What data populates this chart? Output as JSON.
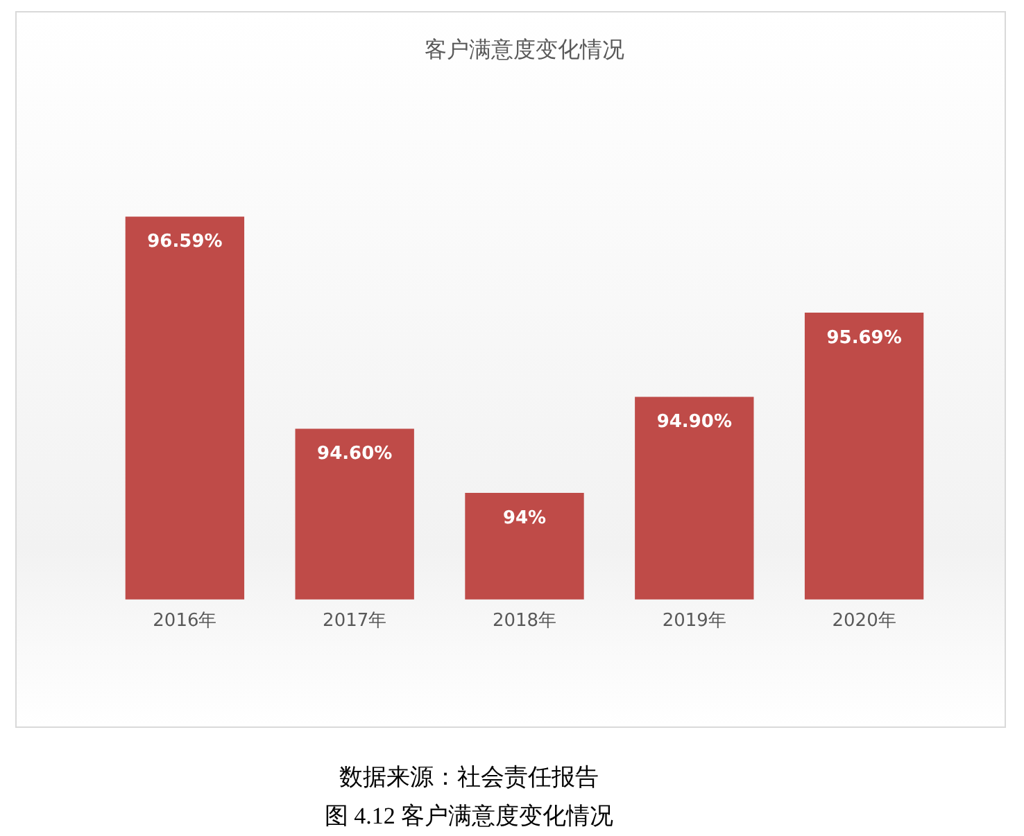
{
  "chart_data": {
    "type": "bar",
    "title": "客户满意度变化情况",
    "categories": [
      "2016年",
      "2017年",
      "2018年",
      "2019年",
      "2020年"
    ],
    "values": [
      96.59,
      94.6,
      94,
      94.9,
      95.69
    ],
    "value_labels": [
      "96.59%",
      "94.60%",
      "94%",
      "94.90%",
      "95.69%"
    ],
    "color": "#bf4b48",
    "tick_labels": "x",
    "grid": false,
    "legend": false,
    "annotations": [
      "数据来源：社会责任报告",
      "图 4.12 客户满意度变化情况"
    ]
  }
}
